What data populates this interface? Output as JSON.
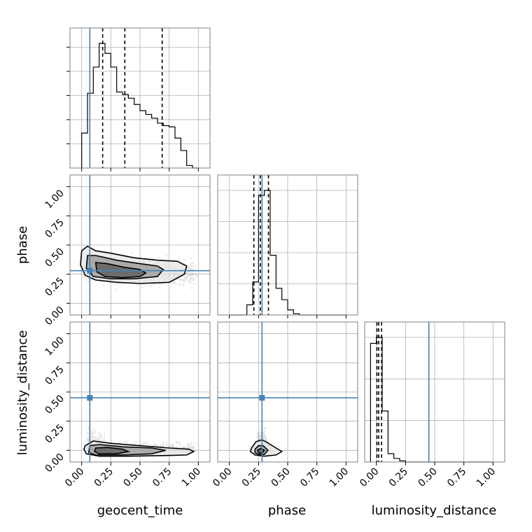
{
  "chart_data": {
    "type": "scatter",
    "parameters": [
      "geocent_time",
      "phase",
      "luminosity_distance"
    ],
    "axis_labels": {
      "x": [
        "geocent_time",
        "phase",
        "luminosity_distance"
      ],
      "y": [
        "phase",
        "luminosity_distance"
      ]
    },
    "tick_values": [
      0.0,
      0.25,
      0.5,
      0.75,
      1.0
    ],
    "tick_labels": [
      "0.00",
      "0.25",
      "0.50",
      "0.75",
      "1.00"
    ],
    "xlim": [
      -0.1,
      1.1
    ],
    "ylim": [
      -0.1,
      1.1
    ],
    "truths": {
      "geocent_time": 0.07,
      "phase": 0.28,
      "luminosity_distance": 0.45
    },
    "quantiles": {
      "geocent_time": [
        0.18,
        0.37,
        0.69
      ],
      "phase": [
        0.21,
        0.265,
        0.335
      ],
      "luminosity_distance": [
        0.005,
        0.02,
        0.045
      ]
    },
    "histograms": {
      "geocent_time": {
        "edges": [
          0.0,
          0.05,
          0.1,
          0.15,
          0.2,
          0.25,
          0.3,
          0.35,
          0.4,
          0.45,
          0.5,
          0.55,
          0.6,
          0.65,
          0.7,
          0.75,
          0.8,
          0.85,
          0.9,
          0.95,
          1.0
        ],
        "counts": [
          28,
          60,
          81,
          100,
          92,
          81,
          61,
          59,
          56,
          51,
          46,
          43,
          40,
          36,
          34,
          33,
          24,
          14,
          2,
          0
        ]
      },
      "phase": {
        "edges": [
          0.0,
          0.05,
          0.1,
          0.15,
          0.2,
          0.25,
          0.3,
          0.35,
          0.4,
          0.45,
          0.5,
          0.55,
          0.6,
          0.65,
          0.7,
          0.75,
          0.8,
          0.85,
          0.9,
          0.95,
          1.0
        ],
        "counts": [
          0,
          0,
          0,
          0.08,
          0.26,
          0.94,
          0.98,
          0.47,
          0.21,
          0.12,
          0.04,
          0.01,
          0,
          0,
          0,
          0,
          0,
          0,
          0,
          0
        ]
      },
      "luminosity_distance": {
        "edges": [
          -0.05,
          0.0,
          0.05,
          0.1,
          0.15,
          0.2,
          0.25,
          0.3,
          0.35,
          0.4,
          0.45,
          0.5,
          0.55,
          0.6,
          0.65,
          0.7,
          0.75,
          0.8,
          0.85,
          0.9,
          0.95,
          1.0
        ],
        "counts": [
          1.0,
          1.05,
          0.43,
          0.07,
          0.03,
          0.01,
          0,
          0,
          0,
          0,
          0,
          0,
          0,
          0,
          0,
          0,
          0,
          0,
          0,
          0,
          0
        ]
      }
    },
    "contours": {
      "geocent_time_phase": {
        "outer": [
          [
            0.0,
            0.45
          ],
          [
            0.05,
            0.49
          ],
          [
            0.12,
            0.45
          ],
          [
            0.25,
            0.43
          ],
          [
            0.45,
            0.39
          ],
          [
            0.65,
            0.37
          ],
          [
            0.82,
            0.36
          ],
          [
            0.9,
            0.32
          ],
          [
            0.88,
            0.25
          ],
          [
            0.75,
            0.18
          ],
          [
            0.5,
            0.17
          ],
          [
            0.3,
            0.18
          ],
          [
            0.12,
            0.2
          ],
          [
            0.03,
            0.24
          ],
          [
            -0.01,
            0.33
          ]
        ],
        "middle": [
          [
            0.05,
            0.41
          ],
          [
            0.12,
            0.41
          ],
          [
            0.3,
            0.37
          ],
          [
            0.5,
            0.34
          ],
          [
            0.65,
            0.32
          ],
          [
            0.7,
            0.29
          ],
          [
            0.65,
            0.23
          ],
          [
            0.45,
            0.21
          ],
          [
            0.25,
            0.21
          ],
          [
            0.1,
            0.23
          ],
          [
            0.04,
            0.3
          ]
        ],
        "inner": [
          [
            0.12,
            0.35
          ],
          [
            0.22,
            0.34
          ],
          [
            0.36,
            0.31
          ],
          [
            0.5,
            0.29
          ],
          [
            0.55,
            0.26
          ],
          [
            0.5,
            0.23
          ],
          [
            0.35,
            0.22
          ],
          [
            0.2,
            0.23
          ],
          [
            0.13,
            0.27
          ]
        ]
      },
      "geocent_time_luminosity_distance": {
        "outer": [
          [
            0.03,
            0.04
          ],
          [
            0.1,
            0.08
          ],
          [
            0.25,
            0.06
          ],
          [
            0.5,
            0.04
          ],
          [
            0.75,
            0.02
          ],
          [
            0.92,
            0.01
          ],
          [
            0.96,
            -0.01
          ],
          [
            0.9,
            -0.04
          ],
          [
            0.7,
            -0.045
          ],
          [
            0.4,
            -0.05
          ],
          [
            0.15,
            -0.05
          ],
          [
            0.04,
            -0.03
          ],
          [
            0.02,
            0.01
          ]
        ],
        "middle": [
          [
            0.07,
            0.04
          ],
          [
            0.15,
            0.05
          ],
          [
            0.35,
            0.03
          ],
          [
            0.6,
            0.02
          ],
          [
            0.72,
            0.0
          ],
          [
            0.6,
            -0.03
          ],
          [
            0.35,
            -0.04
          ],
          [
            0.12,
            -0.04
          ],
          [
            0.06,
            -0.02
          ]
        ],
        "inner": [
          [
            0.12,
            0.02
          ],
          [
            0.22,
            0.025
          ],
          [
            0.35,
            0.01
          ],
          [
            0.4,
            -0.01
          ],
          [
            0.3,
            -0.03
          ],
          [
            0.15,
            -0.03
          ],
          [
            0.11,
            -0.01
          ]
        ]
      },
      "phase_luminosity_distance": {
        "outer": [
          [
            0.19,
            0.02
          ],
          [
            0.23,
            0.075
          ],
          [
            0.28,
            0.09
          ],
          [
            0.32,
            0.07
          ],
          [
            0.4,
            0.02
          ],
          [
            0.45,
            -0.01
          ],
          [
            0.4,
            -0.04
          ],
          [
            0.3,
            -0.05
          ],
          [
            0.22,
            -0.04
          ],
          [
            0.18,
            -0.01
          ]
        ],
        "middle": [
          [
            0.22,
            0.01
          ],
          [
            0.25,
            0.04
          ],
          [
            0.29,
            0.04
          ],
          [
            0.33,
            0.0
          ],
          [
            0.3,
            -0.035
          ],
          [
            0.25,
            -0.035
          ],
          [
            0.22,
            -0.02
          ]
        ],
        "inner": [
          [
            0.24,
            0.0
          ],
          [
            0.27,
            0.015
          ],
          [
            0.3,
            0.0
          ],
          [
            0.28,
            -0.025
          ],
          [
            0.25,
            -0.02
          ]
        ]
      }
    },
    "grid": true
  }
}
